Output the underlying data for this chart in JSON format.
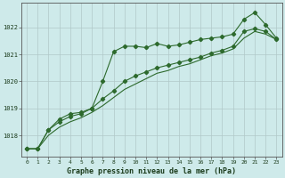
{
  "title": "Graphe pression niveau de la mer (hPa)",
  "background_color": "#ceeaea",
  "grid_color": "#b0c8c8",
  "line_color": "#2d6a2d",
  "xlim": [
    -0.5,
    23.5
  ],
  "ylim": [
    1017.2,
    1022.9
  ],
  "yticks": [
    1018,
    1019,
    1020,
    1021,
    1022
  ],
  "xticks": [
    0,
    1,
    2,
    3,
    4,
    5,
    6,
    7,
    8,
    9,
    10,
    11,
    12,
    13,
    14,
    15,
    16,
    17,
    18,
    19,
    20,
    21,
    22,
    23
  ],
  "series1_x": [
    0,
    1,
    2,
    3,
    4,
    5,
    6,
    7,
    8,
    9,
    10,
    11,
    12,
    13,
    14,
    15,
    16,
    17,
    18,
    19,
    20,
    21,
    22,
    23
  ],
  "series1_y": [
    1017.5,
    1017.5,
    1018.2,
    1018.5,
    1018.7,
    1018.8,
    1019.0,
    1020.0,
    1021.1,
    1021.3,
    1021.3,
    1021.25,
    1021.4,
    1021.3,
    1021.35,
    1021.45,
    1021.55,
    1021.6,
    1021.65,
    1021.75,
    1022.3,
    1022.55,
    1022.1,
    1021.6
  ],
  "series2_x": [
    0,
    1,
    2,
    3,
    4,
    5,
    6,
    7,
    8,
    9,
    10,
    11,
    12,
    13,
    14,
    15,
    16,
    17,
    18,
    19,
    20,
    21,
    22,
    23
  ],
  "series2_y": [
    1017.5,
    1017.5,
    1018.2,
    1018.6,
    1018.8,
    1018.85,
    1019.0,
    1019.35,
    1019.65,
    1020.0,
    1020.2,
    1020.35,
    1020.5,
    1020.6,
    1020.7,
    1020.8,
    1020.9,
    1021.05,
    1021.15,
    1021.3,
    1021.85,
    1021.95,
    1021.85,
    1021.55
  ],
  "series3_x": [
    0,
    1,
    2,
    3,
    4,
    5,
    6,
    7,
    8,
    9,
    10,
    11,
    12,
    13,
    14,
    15,
    16,
    17,
    18,
    19,
    20,
    21,
    22,
    23
  ],
  "series3_y": [
    1017.5,
    1017.5,
    1018.0,
    1018.3,
    1018.5,
    1018.65,
    1018.85,
    1019.1,
    1019.4,
    1019.7,
    1019.9,
    1020.1,
    1020.3,
    1020.4,
    1020.55,
    1020.65,
    1020.8,
    1020.95,
    1021.05,
    1021.2,
    1021.6,
    1021.85,
    1021.75,
    1021.55
  ]
}
